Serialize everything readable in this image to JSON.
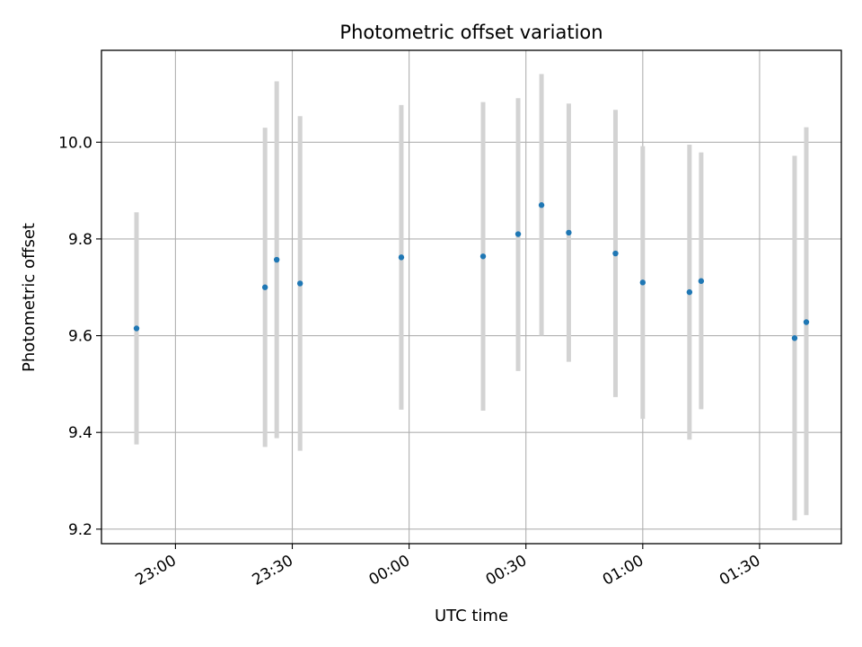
{
  "chart_data": {
    "type": "scatter",
    "title": "Photometric offset variation",
    "xlabel": "UTC time",
    "ylabel": "Photometric offset",
    "x_axis_kind": "time",
    "xlim": [
      "22:41",
      "01:51"
    ],
    "ylim": [
      9.17,
      10.19
    ],
    "x_ticks": [
      "23:00",
      "23:30",
      "00:00",
      "00:30",
      "01:00",
      "01:30"
    ],
    "y_ticks": [
      "9.2",
      "9.4",
      "9.6",
      "9.8",
      "10.0"
    ],
    "grid": true,
    "marker_color": "#1f77b4",
    "errorbar_color": "#d3d3d3",
    "points": [
      {
        "x": "22:50",
        "y": 9.615,
        "ylow": 9.375,
        "yhigh": 9.855
      },
      {
        "x": "23:23",
        "y": 9.7,
        "ylow": 9.37,
        "yhigh": 10.03
      },
      {
        "x": "23:26",
        "y": 9.757,
        "ylow": 9.388,
        "yhigh": 10.126
      },
      {
        "x": "23:32",
        "y": 9.708,
        "ylow": 9.362,
        "yhigh": 10.054
      },
      {
        "x": "23:58",
        "y": 9.762,
        "ylow": 9.447,
        "yhigh": 10.077
      },
      {
        "x": "00:19",
        "y": 9.764,
        "ylow": 9.445,
        "yhigh": 10.083
      },
      {
        "x": "00:28",
        "y": 9.81,
        "ylow": 9.527,
        "yhigh": 10.091
      },
      {
        "x": "00:34",
        "y": 9.87,
        "ylow": 9.6,
        "yhigh": 10.141
      },
      {
        "x": "00:41",
        "y": 9.813,
        "ylow": 9.546,
        "yhigh": 10.08
      },
      {
        "x": "00:53",
        "y": 9.77,
        "ylow": 9.473,
        "yhigh": 10.067
      },
      {
        "x": "01:00",
        "y": 9.71,
        "ylow": 9.428,
        "yhigh": 9.992
      },
      {
        "x": "01:12",
        "y": 9.69,
        "ylow": 9.385,
        "yhigh": 9.995
      },
      {
        "x": "01:15",
        "y": 9.713,
        "ylow": 9.448,
        "yhigh": 9.979
      },
      {
        "x": "01:39",
        "y": 9.595,
        "ylow": 9.218,
        "yhigh": 9.972
      },
      {
        "x": "01:42",
        "y": 9.628,
        "ylow": 9.229,
        "yhigh": 10.031
      }
    ]
  }
}
